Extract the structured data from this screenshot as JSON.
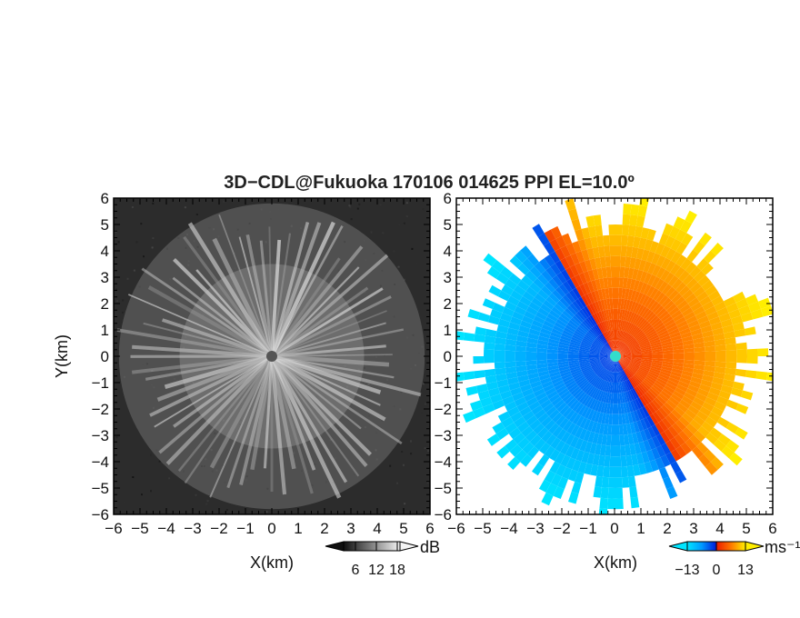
{
  "figure": {
    "title": "3D−CDL@Fukuoka 170106 014625 PPI EL=10.0º"
  },
  "chart_data": [
    {
      "type": "heatmap",
      "name": "reflectivity-ppi",
      "xlabel": "X(km)",
      "ylabel": "Y(km)",
      "xlim": [
        -6,
        6
      ],
      "ylim": [
        -6,
        6
      ],
      "xticks": [
        "−6",
        "−5",
        "−4",
        "−3",
        "−2",
        "−1",
        "0",
        "1",
        "2",
        "3",
        "4",
        "5",
        "6"
      ],
      "yticks": [
        "6",
        "5",
        "4",
        "3",
        "2",
        "1",
        "0",
        "−1",
        "−2",
        "−3",
        "−4",
        "−5",
        "−6"
      ],
      "colorbar": {
        "unit": "dB",
        "ticks": [
          "6",
          "12",
          "18"
        ],
        "colormap": "grayscale",
        "colors": {
          "low": "#111111",
          "high": "#f2f2f2"
        }
      }
    },
    {
      "type": "heatmap",
      "name": "doppler-velocity-ppi",
      "xlabel": "X(km)",
      "ylabel": "",
      "xlim": [
        -6,
        6
      ],
      "ylim": [
        -6,
        6
      ],
      "xticks": [
        "−6",
        "−5",
        "−4",
        "−3",
        "−2",
        "−1",
        "0",
        "1",
        "2",
        "3",
        "4",
        "5",
        "6"
      ],
      "yticks": [
        "6",
        "5",
        "4",
        "3",
        "2",
        "1",
        "0",
        "−1",
        "−2",
        "−3",
        "−4",
        "−5",
        "−6"
      ],
      "colorbar": {
        "unit": "ms⁻¹",
        "ticks": [
          "−13",
          "0",
          "13"
        ],
        "colormap": "diverging",
        "colors": {
          "neg_far": "#00e5ff",
          "neg_near": "#0022dd",
          "pos_near": "#ee2200",
          "pos_far": "#ffee00"
        }
      }
    }
  ]
}
